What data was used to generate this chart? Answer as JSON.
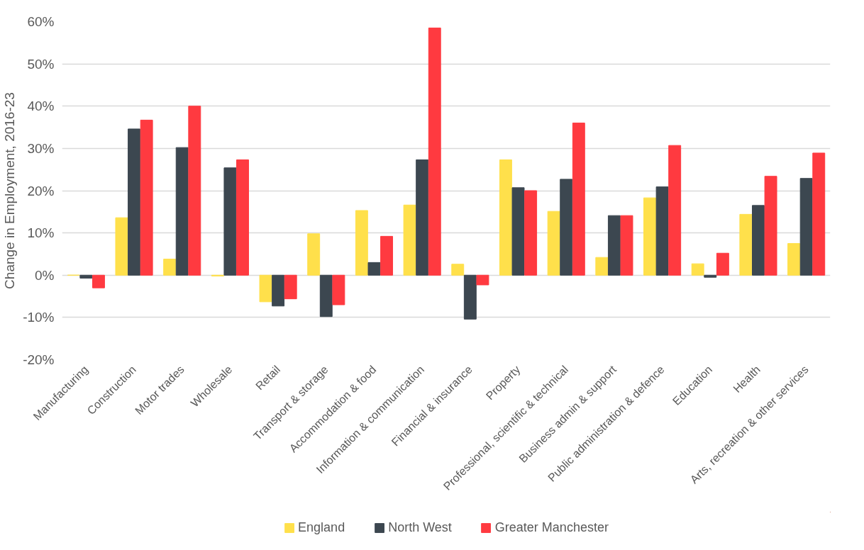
{
  "chart_data": {
    "type": "bar",
    "ylabel": "Change in Employment, 2016-23",
    "categories": [
      "Manufacturing",
      "Construction",
      "Motor trades",
      "Wholesale",
      "Retail",
      "Transport & storage",
      "Accommodation & food",
      "Information & communication",
      "Financial & insurance",
      "Property",
      "Professional, scientific & technical",
      "Business admin & support",
      "Public administration & defence",
      "Education",
      "Health",
      "Arts, recreation & other services"
    ],
    "series": [
      {
        "name": "England",
        "color": "#ffe04b",
        "values": [
          0,
          13.6,
          3.8,
          -0.2,
          -6.3,
          9.8,
          15.3,
          16.6,
          2.6,
          27.3,
          15.1,
          4.2,
          18.3,
          2.7,
          14.4,
          7.5
        ]
      },
      {
        "name": "North West",
        "color": "#3c4750",
        "values": [
          -0.7,
          34.6,
          30.2,
          25.4,
          -7.3,
          -9.8,
          3.0,
          27.3,
          -10.4,
          20.7,
          22.7,
          14.1,
          20.9,
          -0.5,
          16.5,
          22.9
        ]
      },
      {
        "name": "Greater Manchester",
        "color": "#ff3a40",
        "values": [
          -3.0,
          36.7,
          40.0,
          27.3,
          -5.6,
          -7.0,
          9.2,
          58.5,
          -2.3,
          20.0,
          36.0,
          14.1,
          30.7,
          5.2,
          23.4,
          28.9
        ]
      }
    ],
    "ylim": [
      -20,
      60
    ],
    "yticks": [
      {
        "value": -20,
        "label": "-20%"
      },
      {
        "value": -10,
        "label": "-10%"
      },
      {
        "value": 0,
        "label": "0%"
      },
      {
        "value": 10,
        "label": "10%"
      },
      {
        "value": 20,
        "label": "20%"
      },
      {
        "value": 30,
        "label": "30%"
      },
      {
        "value": 40,
        "label": "40%"
      },
      {
        "value": 50,
        "label": "50%"
      },
      {
        "value": 60,
        "label": "60%"
      }
    ],
    "grid": "y",
    "legend": "bottom"
  }
}
